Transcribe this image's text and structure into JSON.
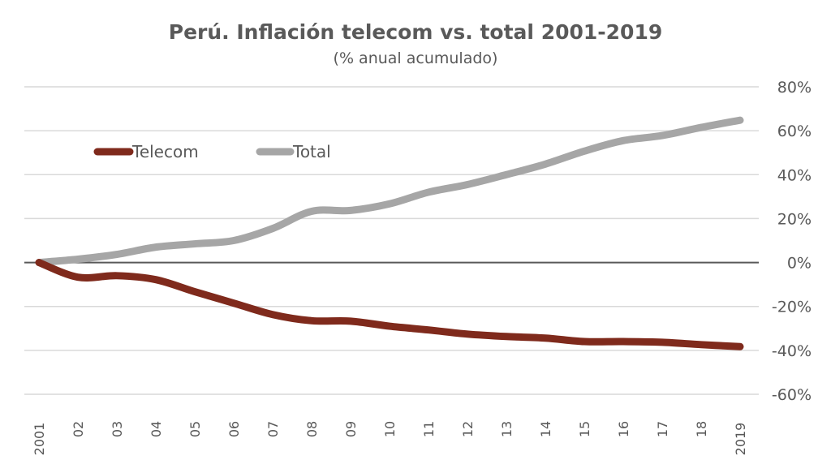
{
  "chart_data": {
    "type": "line",
    "title": "Perú. Inflación telecom vs. total 2001-2019",
    "subtitle": "(% anual acumulado)",
    "xlabel": "",
    "ylabel": "",
    "categories": [
      "2001",
      "02",
      "03",
      "04",
      "05",
      "06",
      "07",
      "08",
      "09",
      "10",
      "11",
      "12",
      "13",
      "14",
      "15",
      "16",
      "17",
      "18",
      "2019"
    ],
    "y_ticks": [
      "80%",
      "60%",
      "40%",
      "20%",
      "0%",
      "-20%",
      "-40%",
      "-60%"
    ],
    "ylim": [
      -60,
      80
    ],
    "y_axis_side": "right",
    "grid": true,
    "legend_position": "top-left",
    "series": [
      {
        "name": "Telecom",
        "color": "#7f2a1c",
        "values": [
          0,
          -6.7,
          -6,
          -7.8,
          -13.3,
          -18.5,
          -23.7,
          -26.5,
          -26.7,
          -29,
          -30.7,
          -32.6,
          -33.7,
          -34.4,
          -36,
          -36,
          -36.3,
          -37.4,
          -38.3
        ]
      },
      {
        "name": "Total",
        "color": "#a6a6a6",
        "values": [
          0,
          1.5,
          3.7,
          7,
          8.5,
          10,
          15.5,
          23.3,
          23.7,
          26.7,
          32,
          35.5,
          40,
          44.8,
          50.7,
          55.5,
          57.8,
          61.5,
          64.8
        ]
      }
    ]
  }
}
